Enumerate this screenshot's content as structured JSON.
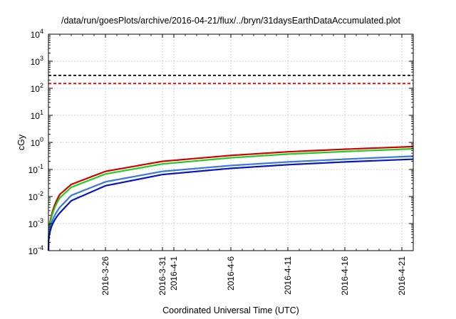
{
  "chart_data": {
    "type": "line",
    "title": "/data/run/goesPlots/archive/2016-04-21/flux/../bryn/31daysEarthDataAccumulated.plot",
    "xlabel": "Coordinated Universal Time (UTC)",
    "ylabel": "cGy",
    "yscale": "log",
    "ylim": [
      0.0001,
      10000
    ],
    "y_ticks": [
      {
        "base": "10",
        "exp": "-4",
        "value": 0.0001
      },
      {
        "base": "10",
        "exp": "-3",
        "value": 0.001
      },
      {
        "base": "10",
        "exp": "-2",
        "value": 0.01
      },
      {
        "base": "10",
        "exp": "-1",
        "value": 0.1
      },
      {
        "base": "10",
        "exp": "0",
        "value": 1
      },
      {
        "base": "10",
        "exp": "1",
        "value": 10
      },
      {
        "base": "10",
        "exp": "2",
        "value": 100
      },
      {
        "base": "10",
        "exp": "3",
        "value": 1000
      },
      {
        "base": "10",
        "exp": "4",
        "value": 10000
      }
    ],
    "xlim": [
      "2016-03-21",
      "2016-04-22"
    ],
    "x_ticks": [
      {
        "date": "2016-03-26",
        "label": "2016-3-26"
      },
      {
        "date": "2016-03-31",
        "label": "2016-3-31"
      },
      {
        "date": "2016-04-01",
        "label": "2016-4-1"
      },
      {
        "date": "2016-04-06",
        "label": "2016-4-6"
      },
      {
        "date": "2016-04-11",
        "label": "2016-4-11"
      },
      {
        "date": "2016-04-16",
        "label": "2016-4-16"
      },
      {
        "date": "2016-04-21",
        "label": "2016-4-21"
      }
    ],
    "grid": true,
    "reference_lines": [
      {
        "y": 300,
        "color": "#000000"
      },
      {
        "y": 150,
        "color": "#e00000"
      }
    ],
    "series": [
      {
        "color": "#d40000",
        "x": [
          "2016-03-21",
          "2016-03-22",
          "2016-03-23",
          "2016-03-26",
          "2016-03-31",
          "2016-04-06",
          "2016-04-11",
          "2016-04-16",
          "2016-04-22"
        ],
        "values": [
          0.0001,
          0.012,
          0.028,
          0.085,
          0.2,
          0.33,
          0.45,
          0.56,
          0.7
        ]
      },
      {
        "color": "#22cc22",
        "x": [
          "2016-03-21",
          "2016-03-22",
          "2016-03-23",
          "2016-03-26",
          "2016-03-31",
          "2016-04-06",
          "2016-04-11",
          "2016-04-16",
          "2016-04-22"
        ],
        "values": [
          0.0001,
          0.009,
          0.022,
          0.068,
          0.16,
          0.27,
          0.37,
          0.46,
          0.58
        ]
      },
      {
        "color": "#3a78e0",
        "x": [
          "2016-03-21",
          "2016-03-22",
          "2016-03-23",
          "2016-03-26",
          "2016-03-31",
          "2016-04-06",
          "2016-04-11",
          "2016-04-16",
          "2016-04-22"
        ],
        "values": [
          0.0001,
          0.004,
          0.011,
          0.035,
          0.085,
          0.14,
          0.19,
          0.24,
          0.31
        ]
      },
      {
        "color": "#0a14c8",
        "x": [
          "2016-03-21",
          "2016-03-22",
          "2016-03-23",
          "2016-03-26",
          "2016-03-31",
          "2016-04-06",
          "2016-04-11",
          "2016-04-16",
          "2016-04-22"
        ],
        "values": [
          0.0001,
          0.0025,
          0.007,
          0.025,
          0.065,
          0.11,
          0.15,
          0.19,
          0.24
        ]
      }
    ]
  }
}
